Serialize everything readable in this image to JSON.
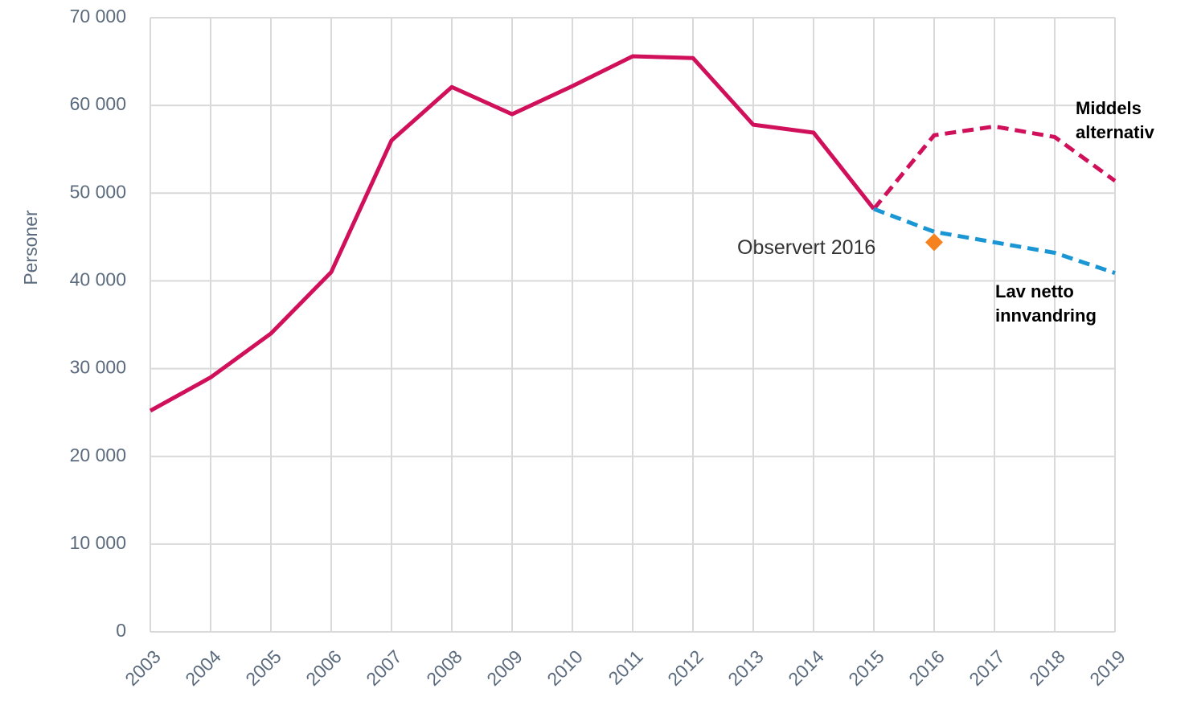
{
  "chart_data": {
    "type": "line",
    "y_label": "Personer",
    "categories": [
      "2003",
      "2004",
      "2005",
      "2006",
      "2007",
      "2008",
      "2009",
      "2010",
      "2011",
      "2012",
      "2013",
      "2014",
      "2015",
      "2016",
      "2017",
      "2018",
      "2019"
    ],
    "series": [
      {
        "color": "#d0105a",
        "dash": false,
        "values": [
          25200,
          29000,
          34000,
          41000,
          56000,
          62100,
          59000,
          62200,
          65600,
          65400,
          57800,
          56900,
          48200,
          null,
          null,
          null,
          null
        ]
      },
      {
        "name": "Middels alternativ",
        "color": "#d0105a",
        "dash": true,
        "values": [
          null,
          null,
          null,
          null,
          null,
          null,
          null,
          null,
          null,
          null,
          null,
          null,
          48200,
          56600,
          57600,
          56400,
          51400
        ]
      },
      {
        "name": "Lav netto innvandring",
        "color": "#1b96d4",
        "dash": true,
        "values": [
          null,
          null,
          null,
          null,
          null,
          null,
          null,
          null,
          null,
          null,
          null,
          null,
          48200,
          45600,
          44400,
          43200,
          40900
        ]
      }
    ],
    "observed": {
      "name": "Observert 2016",
      "category": "2016",
      "value": 44400,
      "color": "#f5821f"
    },
    "ylim": [
      0,
      70000
    ],
    "yticks": [
      0,
      {
        "value": 10000,
        "label": "10 000"
      },
      {
        "value": 20000,
        "label": "20 000"
      },
      {
        "value": 30000,
        "label": "30 000"
      },
      {
        "value": 40000,
        "label": "40 000"
      },
      {
        "value": 50000,
        "label": "50 000"
      },
      {
        "value": 60000,
        "label": "60 000"
      },
      {
        "value": 70000,
        "label": "70 000"
      }
    ],
    "grid": true
  }
}
